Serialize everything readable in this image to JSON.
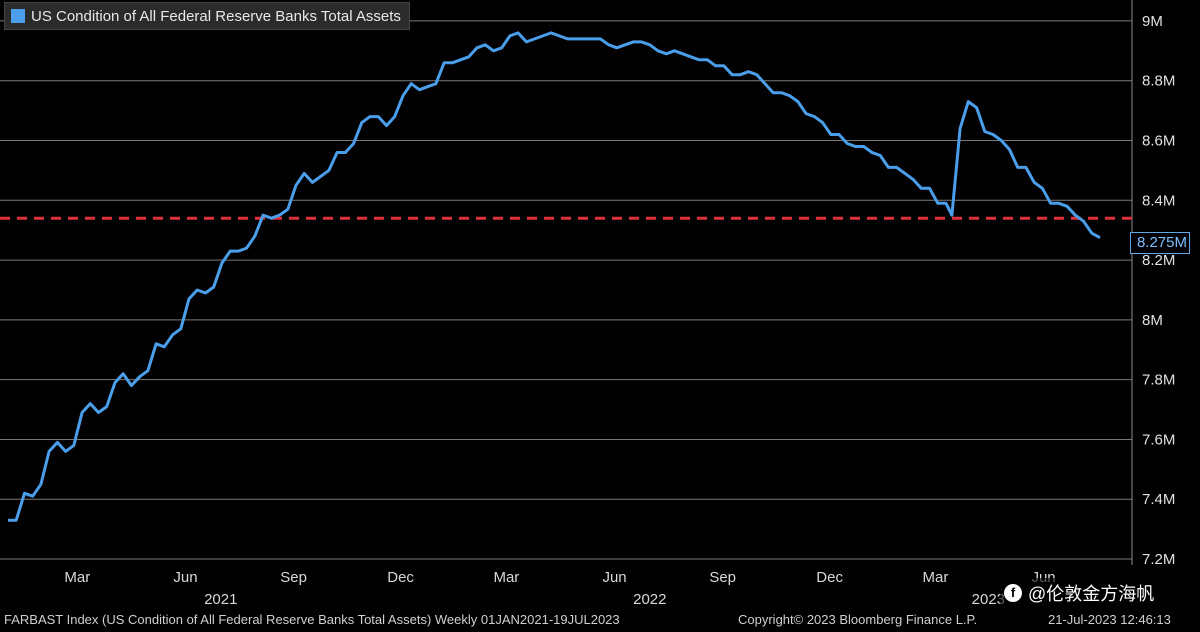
{
  "legend": {
    "label": "US Condition of All Federal Reserve Banks Total Assets",
    "color": "#4a9eea"
  },
  "last_value_label": "8.275M",
  "footer": {
    "index_text": "FARBAST Index (US Condition of All Federal Reserve Banks Total Assets)  Weekly 01JAN2021-19JUL2023",
    "copyright": "Copyright© 2023 Bloomberg Finance L.P.",
    "timestamp": "21-Jul-2023 12:46:13"
  },
  "watermark": {
    "icon": "f",
    "text": "@伦敦金方海帆"
  },
  "chart_data": {
    "type": "line",
    "title": "US Condition of All Federal Reserve Banks Total Assets",
    "x_range": [
      "2021-01-01",
      "2023-07-19"
    ],
    "ylim": [
      7.18,
      9.07
    ],
    "y_ticks": [
      {
        "v": 7.2,
        "label": "7.2M"
      },
      {
        "v": 7.4,
        "label": "7.4M"
      },
      {
        "v": 7.6,
        "label": "7.6M"
      },
      {
        "v": 7.8,
        "label": "7.8M"
      },
      {
        "v": 8.0,
        "label": "8M"
      },
      {
        "v": 8.2,
        "label": "8.2M"
      },
      {
        "v": 8.4,
        "label": "8.4M"
      },
      {
        "v": 8.6,
        "label": "8.6M"
      },
      {
        "v": 8.8,
        "label": "8.8M"
      },
      {
        "v": 9.0,
        "label": "9M"
      }
    ],
    "x_ticks": [
      {
        "date": "2021-03-01",
        "label": "Mar"
      },
      {
        "date": "2021-06-01",
        "label": "Jun"
      },
      {
        "date": "2021-09-01",
        "label": "Sep"
      },
      {
        "date": "2021-12-01",
        "label": "Dec"
      },
      {
        "date": "2022-03-01",
        "label": "Mar"
      },
      {
        "date": "2022-06-01",
        "label": "Jun"
      },
      {
        "date": "2022-09-01",
        "label": "Sep"
      },
      {
        "date": "2022-12-01",
        "label": "Dec"
      },
      {
        "date": "2023-03-01",
        "label": "Mar"
      },
      {
        "date": "2023-06-01",
        "label": "Jun"
      }
    ],
    "year_labels": [
      {
        "date": "2021-07-01",
        "label": "2021"
      },
      {
        "date": "2022-07-01",
        "label": "2022"
      },
      {
        "date": "2023-04-15",
        "label": "2023"
      }
    ],
    "reference_line": {
      "value": 8.34,
      "color": "#e0303a",
      "style": "dashed"
    },
    "grid": true,
    "legend_position": "top-left",
    "series": [
      {
        "name": "US Condition of All Federal Reserve Banks Total Assets",
        "color": "#4a9eea",
        "points": [
          [
            "2021-01-01",
            7.33
          ],
          [
            "2021-01-08",
            7.33
          ],
          [
            "2021-01-15",
            7.42
          ],
          [
            "2021-01-22",
            7.41
          ],
          [
            "2021-01-29",
            7.45
          ],
          [
            "2021-02-05",
            7.56
          ],
          [
            "2021-02-12",
            7.59
          ],
          [
            "2021-02-19",
            7.56
          ],
          [
            "2021-02-26",
            7.58
          ],
          [
            "2021-03-05",
            7.69
          ],
          [
            "2021-03-12",
            7.72
          ],
          [
            "2021-03-19",
            7.69
          ],
          [
            "2021-03-26",
            7.71
          ],
          [
            "2021-04-02",
            7.79
          ],
          [
            "2021-04-09",
            7.82
          ],
          [
            "2021-04-16",
            7.78
          ],
          [
            "2021-04-23",
            7.81
          ],
          [
            "2021-04-30",
            7.83
          ],
          [
            "2021-05-07",
            7.92
          ],
          [
            "2021-05-14",
            7.91
          ],
          [
            "2021-05-21",
            7.95
          ],
          [
            "2021-05-28",
            7.97
          ],
          [
            "2021-06-04",
            8.07
          ],
          [
            "2021-06-11",
            8.1
          ],
          [
            "2021-06-18",
            8.09
          ],
          [
            "2021-06-25",
            8.11
          ],
          [
            "2021-07-02",
            8.19
          ],
          [
            "2021-07-09",
            8.23
          ],
          [
            "2021-07-16",
            8.23
          ],
          [
            "2021-07-23",
            8.24
          ],
          [
            "2021-07-30",
            8.28
          ],
          [
            "2021-08-06",
            8.35
          ],
          [
            "2021-08-13",
            8.34
          ],
          [
            "2021-08-20",
            8.35
          ],
          [
            "2021-08-27",
            8.37
          ],
          [
            "2021-09-03",
            8.45
          ],
          [
            "2021-09-10",
            8.49
          ],
          [
            "2021-09-17",
            8.46
          ],
          [
            "2021-09-24",
            8.48
          ],
          [
            "2021-10-01",
            8.5
          ],
          [
            "2021-10-08",
            8.56
          ],
          [
            "2021-10-15",
            8.56
          ],
          [
            "2021-10-22",
            8.59
          ],
          [
            "2021-10-29",
            8.66
          ],
          [
            "2021-11-05",
            8.68
          ],
          [
            "2021-11-12",
            8.68
          ],
          [
            "2021-11-19",
            8.65
          ],
          [
            "2021-11-26",
            8.68
          ],
          [
            "2021-12-03",
            8.75
          ],
          [
            "2021-12-10",
            8.79
          ],
          [
            "2021-12-17",
            8.77
          ],
          [
            "2021-12-24",
            8.78
          ],
          [
            "2021-12-31",
            8.79
          ],
          [
            "2022-01-07",
            8.86
          ],
          [
            "2022-01-14",
            8.86
          ],
          [
            "2022-01-21",
            8.87
          ],
          [
            "2022-01-28",
            8.88
          ],
          [
            "2022-02-04",
            8.91
          ],
          [
            "2022-02-11",
            8.92
          ],
          [
            "2022-02-18",
            8.9
          ],
          [
            "2022-02-25",
            8.91
          ],
          [
            "2022-03-04",
            8.95
          ],
          [
            "2022-03-11",
            8.96
          ],
          [
            "2022-03-18",
            8.93
          ],
          [
            "2022-03-25",
            8.94
          ],
          [
            "2022-04-01",
            8.95
          ],
          [
            "2022-04-08",
            8.96
          ],
          [
            "2022-04-15",
            8.95
          ],
          [
            "2022-04-22",
            8.94
          ],
          [
            "2022-04-29",
            8.94
          ],
          [
            "2022-05-06",
            8.94
          ],
          [
            "2022-05-13",
            8.94
          ],
          [
            "2022-05-20",
            8.94
          ],
          [
            "2022-05-27",
            8.92
          ],
          [
            "2022-06-03",
            8.91
          ],
          [
            "2022-06-10",
            8.92
          ],
          [
            "2022-06-17",
            8.93
          ],
          [
            "2022-06-24",
            8.93
          ],
          [
            "2022-07-01",
            8.92
          ],
          [
            "2022-07-08",
            8.9
          ],
          [
            "2022-07-15",
            8.89
          ],
          [
            "2022-07-22",
            8.9
          ],
          [
            "2022-07-29",
            8.89
          ],
          [
            "2022-08-05",
            8.88
          ],
          [
            "2022-08-12",
            8.87
          ],
          [
            "2022-08-19",
            8.87
          ],
          [
            "2022-08-26",
            8.85
          ],
          [
            "2022-09-02",
            8.85
          ],
          [
            "2022-09-09",
            8.82
          ],
          [
            "2022-09-16",
            8.82
          ],
          [
            "2022-09-23",
            8.83
          ],
          [
            "2022-09-30",
            8.82
          ],
          [
            "2022-10-07",
            8.79
          ],
          [
            "2022-10-14",
            8.76
          ],
          [
            "2022-10-21",
            8.76
          ],
          [
            "2022-10-28",
            8.75
          ],
          [
            "2022-11-04",
            8.73
          ],
          [
            "2022-11-11",
            8.69
          ],
          [
            "2022-11-18",
            8.68
          ],
          [
            "2022-11-25",
            8.66
          ],
          [
            "2022-12-02",
            8.62
          ],
          [
            "2022-12-09",
            8.62
          ],
          [
            "2022-12-16",
            8.59
          ],
          [
            "2022-12-23",
            8.58
          ],
          [
            "2022-12-30",
            8.58
          ],
          [
            "2023-01-06",
            8.56
          ],
          [
            "2023-01-13",
            8.55
          ],
          [
            "2023-01-20",
            8.51
          ],
          [
            "2023-01-27",
            8.51
          ],
          [
            "2023-02-03",
            8.49
          ],
          [
            "2023-02-10",
            8.47
          ],
          [
            "2023-02-17",
            8.44
          ],
          [
            "2023-02-24",
            8.44
          ],
          [
            "2023-03-03",
            8.39
          ],
          [
            "2023-03-10",
            8.39
          ],
          [
            "2023-03-15",
            8.35
          ],
          [
            "2023-03-22",
            8.64
          ],
          [
            "2023-03-29",
            8.73
          ],
          [
            "2023-04-05",
            8.71
          ],
          [
            "2023-04-12",
            8.63
          ],
          [
            "2023-04-19",
            8.62
          ],
          [
            "2023-04-26",
            8.6
          ],
          [
            "2023-05-03",
            8.57
          ],
          [
            "2023-05-10",
            8.51
          ],
          [
            "2023-05-17",
            8.51
          ],
          [
            "2023-05-24",
            8.46
          ],
          [
            "2023-05-31",
            8.44
          ],
          [
            "2023-06-07",
            8.39
          ],
          [
            "2023-06-14",
            8.39
          ],
          [
            "2023-06-21",
            8.38
          ],
          [
            "2023-06-28",
            8.35
          ],
          [
            "2023-07-05",
            8.33
          ],
          [
            "2023-07-12",
            8.29
          ],
          [
            "2023-07-19",
            8.275
          ]
        ]
      }
    ]
  }
}
